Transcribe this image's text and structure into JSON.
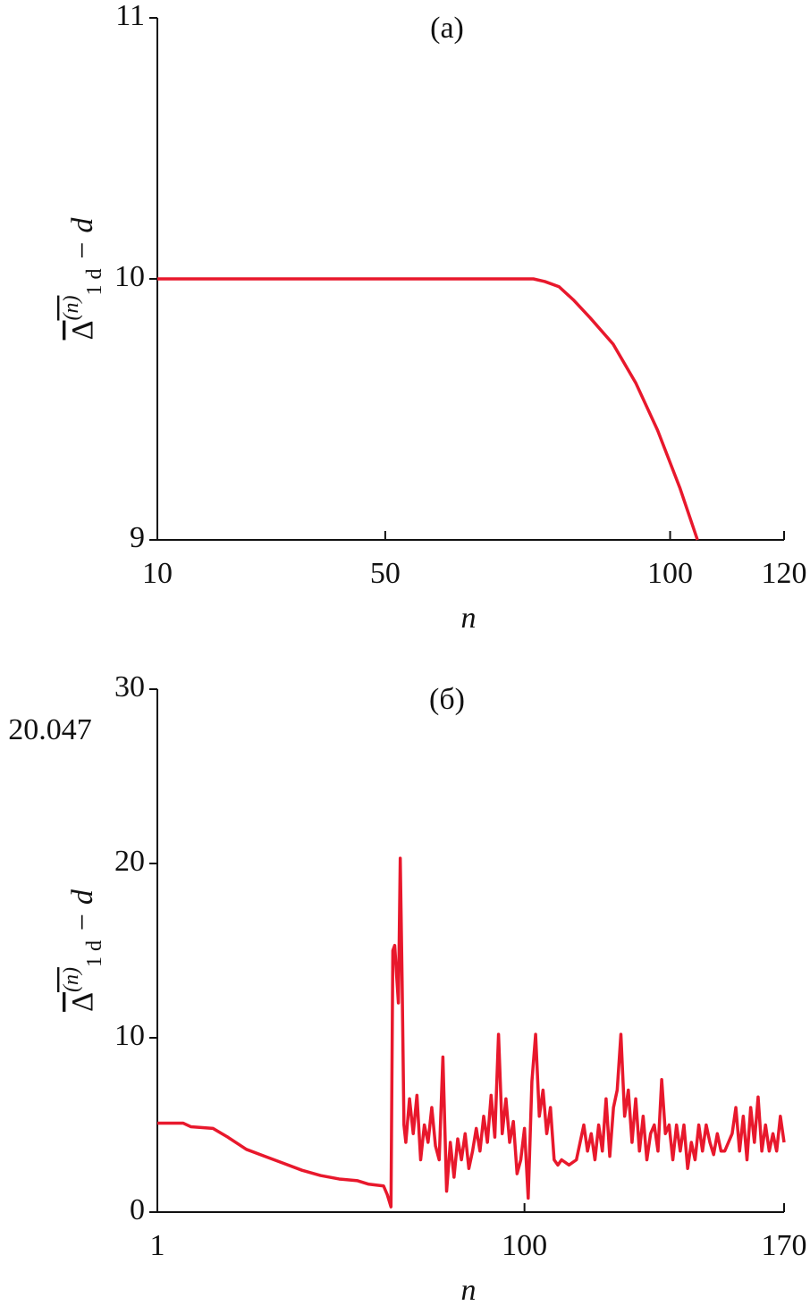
{
  "chart_data": [
    {
      "type": "line",
      "title": "(a)",
      "xlabel": "n",
      "ylabel": [
        "Δ",
        "(n)",
        "1 d",
        " − d"
      ],
      "xlim": [
        10,
        120
      ],
      "xticks": [
        10,
        50,
        100,
        120
      ],
      "ylim": [
        9,
        11
      ],
      "yticks": [
        9,
        10,
        11
      ],
      "series": [
        {
          "color": "#e8182c",
          "x": [
            10,
            30,
            50,
            70,
            76,
            78,
            80.5,
            83,
            86,
            90,
            94,
            97.8,
            101.7,
            104.8
          ],
          "values": [
            10,
            10,
            10,
            10,
            10,
            9.99,
            9.97,
            9.92,
            9.85,
            9.75,
            9.6,
            9.42,
            9.2,
            9.0
          ]
        }
      ]
    },
    {
      "type": "line",
      "title": "(б)",
      "xlabel": "n",
      "ylabel": [
        "Δ",
        "(n)",
        "1 d",
        " − d"
      ],
      "annotation": "20.047",
      "xlim": [
        1,
        170
      ],
      "xticks": [
        1,
        100,
        170
      ],
      "ylim": [
        0,
        30
      ],
      "yticks": [
        0,
        10,
        20,
        30
      ],
      "series": [
        {
          "color": "#e8182c",
          "x": [
            1,
            8,
            10,
            16,
            20,
            25,
            30,
            35,
            40,
            45,
            50,
            55,
            58,
            62,
            63,
            64,
            64.5,
            65,
            66,
            66.5,
            67,
            67.5,
            68,
            69,
            70,
            71,
            72,
            73,
            74,
            75,
            76,
            77,
            78,
            79,
            80,
            81,
            82,
            83,
            84,
            85,
            86,
            87,
            88,
            89,
            90,
            91,
            92,
            93,
            94,
            95,
            96,
            97,
            98,
            99,
            100,
            101,
            102,
            103,
            104,
            105,
            106,
            107,
            108,
            109,
            110,
            112,
            114,
            116,
            117,
            118,
            119,
            120,
            121,
            122,
            123,
            124,
            125,
            126,
            127,
            128,
            129,
            130,
            131,
            132,
            133,
            134,
            135,
            136,
            137,
            138,
            139,
            140,
            141,
            142,
            143,
            144,
            145,
            146,
            147,
            148,
            149,
            150,
            151,
            152,
            153,
            154,
            155,
            156,
            157,
            158,
            159,
            160,
            161,
            162,
            163,
            164,
            165,
            166,
            167,
            168,
            169,
            170
          ],
          "values": [
            5.1,
            5.1,
            4.9,
            4.8,
            4.3,
            3.6,
            3.2,
            2.8,
            2.4,
            2.1,
            1.9,
            1.8,
            1.6,
            1.5,
            1.0,
            0.3,
            15,
            15.3,
            12,
            20.3,
            13.3,
            5,
            4,
            6.5,
            4.5,
            6.7,
            3,
            5,
            4,
            6,
            3.8,
            3,
            8.9,
            1.2,
            4,
            2,
            4.2,
            3,
            4.5,
            2.5,
            3.5,
            4.8,
            3.5,
            5.5,
            4,
            6.7,
            4.3,
            10.2,
            4.5,
            6.5,
            4,
            5.2,
            2.2,
            3,
            4.8,
            0.8,
            7.5,
            10.2,
            5.5,
            7,
            4.5,
            6,
            3,
            2.7,
            3,
            2.7,
            3,
            5,
            3.5,
            4.5,
            3,
            5,
            3.5,
            6.5,
            3.2,
            6,
            7,
            10.2,
            5.5,
            7,
            4,
            6.5,
            3.5,
            5.5,
            3,
            4.5,
            5,
            3.5,
            7.6,
            4.5,
            5,
            3,
            5,
            3.5,
            5,
            2.5,
            4,
            3,
            5,
            3.5,
            5,
            4,
            3.3,
            4.5,
            3.5,
            3.5,
            4,
            4.5,
            6,
            3.5,
            5.5,
            3,
            6,
            4,
            6.6,
            3.5,
            5,
            3.5,
            4.5,
            3.5,
            5.5,
            4
          ]
        }
      ]
    }
  ]
}
